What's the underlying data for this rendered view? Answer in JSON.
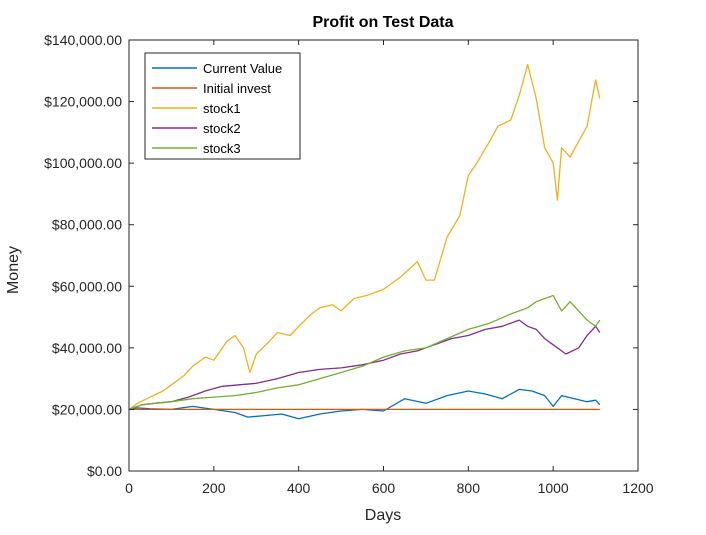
{
  "chart_data": {
    "type": "line",
    "title": "Profit on Test Data",
    "xlabel": "Days",
    "ylabel": "Money",
    "xlim": [
      0,
      1200
    ],
    "ylim": [
      0,
      140000
    ],
    "xticks": [
      0,
      200,
      400,
      600,
      800,
      1000,
      1200
    ],
    "yticks": [
      0,
      20000,
      40000,
      60000,
      80000,
      100000,
      120000,
      140000
    ],
    "xtick_labels": [
      "0",
      "200",
      "400",
      "600",
      "800",
      "1000",
      "1200"
    ],
    "ytick_labels": [
      "$0.00",
      "$20,000.00",
      "$40,000.00",
      "$60,000.00",
      "$80,000.00",
      "$100,000.00",
      "$120,000.00",
      "$140,000.00"
    ],
    "grid": false,
    "legend_position": "top-left",
    "series": [
      {
        "name": "Current Value",
        "color": "#0072BD",
        "x": [
          0,
          20,
          50,
          100,
          150,
          200,
          250,
          280,
          320,
          360,
          400,
          450,
          500,
          550,
          600,
          650,
          700,
          750,
          800,
          840,
          880,
          920,
          950,
          980,
          1000,
          1020,
          1050,
          1080,
          1100,
          1110
        ],
        "y": [
          20000,
          20500,
          20200,
          20000,
          21000,
          20000,
          19000,
          17500,
          18000,
          18500,
          17000,
          18500,
          19500,
          20000,
          19500,
          23500,
          22000,
          24500,
          26000,
          25000,
          23500,
          26500,
          26000,
          24500,
          21000,
          24500,
          23500,
          22500,
          23000,
          21500
        ]
      },
      {
        "name": "Initial invest",
        "color": "#D95319",
        "x": [
          0,
          1110
        ],
        "y": [
          20000,
          20000
        ]
      },
      {
        "name": "stock1",
        "color": "#EDB120",
        "x": [
          0,
          20,
          50,
          80,
          100,
          130,
          150,
          180,
          200,
          230,
          250,
          270,
          285,
          300,
          330,
          350,
          380,
          400,
          430,
          450,
          480,
          500,
          530,
          560,
          600,
          640,
          680,
          700,
          720,
          750,
          780,
          800,
          820,
          850,
          870,
          900,
          920,
          940,
          960,
          980,
          1000,
          1010,
          1020,
          1040,
          1060,
          1080,
          1100,
          1110
        ],
        "y": [
          20000,
          22000,
          24000,
          26000,
          28000,
          31000,
          34000,
          37000,
          36000,
          42000,
          44000,
          40000,
          32000,
          38000,
          42000,
          45000,
          44000,
          47000,
          51000,
          53000,
          54000,
          52000,
          56000,
          57000,
          59000,
          63000,
          68000,
          62000,
          62000,
          76000,
          83000,
          96000,
          100000,
          107000,
          112000,
          114000,
          122000,
          132000,
          121000,
          105000,
          100000,
          88000,
          105000,
          102000,
          107000,
          112000,
          127000,
          121000
        ]
      },
      {
        "name": "stock2",
        "color": "#7E2F8E",
        "x": [
          0,
          30,
          60,
          100,
          140,
          180,
          220,
          260,
          300,
          350,
          400,
          450,
          500,
          550,
          600,
          640,
          680,
          720,
          760,
          800,
          840,
          880,
          920,
          940,
          960,
          980,
          1000,
          1030,
          1060,
          1080,
          1100,
          1110
        ],
        "y": [
          20000,
          21500,
          22000,
          22500,
          24000,
          26000,
          27500,
          28000,
          28500,
          30000,
          32000,
          33000,
          33500,
          34500,
          36000,
          38000,
          39000,
          41000,
          43000,
          44000,
          46000,
          47000,
          49000,
          47000,
          46000,
          43000,
          41000,
          38000,
          40000,
          44000,
          47000,
          45000
        ]
      },
      {
        "name": "stock3",
        "color": "#77AC30",
        "x": [
          0,
          30,
          60,
          100,
          150,
          200,
          250,
          300,
          350,
          400,
          450,
          500,
          550,
          600,
          650,
          700,
          750,
          800,
          850,
          900,
          940,
          960,
          980,
          1000,
          1020,
          1040,
          1060,
          1080,
          1100,
          1110
        ],
        "y": [
          20000,
          21500,
          22000,
          22500,
          23500,
          24000,
          24500,
          25500,
          27000,
          28000,
          30000,
          32000,
          34000,
          37000,
          39000,
          40000,
          43000,
          46000,
          48000,
          51000,
          53000,
          55000,
          56000,
          57000,
          52000,
          55000,
          52000,
          49000,
          47000,
          49000
        ]
      }
    ]
  }
}
